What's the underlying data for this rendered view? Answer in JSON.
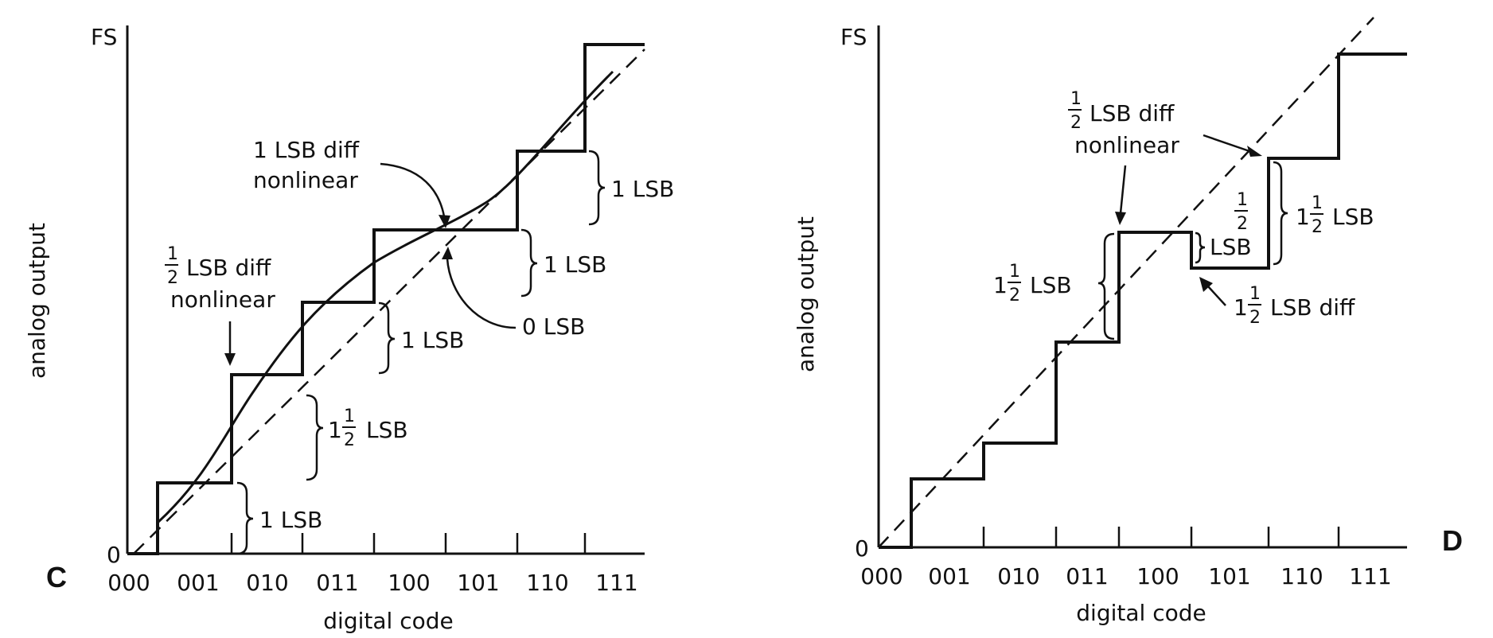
{
  "panels": [
    {
      "letter": "C",
      "axis_y_label": "analog output",
      "axis_x_label": "digital code",
      "y_top": "FS",
      "y_zero": "0",
      "codes": [
        "000",
        "001",
        "010",
        "011",
        "100",
        "101",
        "110",
        "111"
      ],
      "annotations": {
        "diff_one_top": "1 LSB diff",
        "diff_one_bottom": "nonlinear",
        "half_lsb_frac_num": "1",
        "half_lsb_frac_den": "2",
        "half_lsb_diff": "LSB diff",
        "half_lsb_bottom": "nonlinear",
        "zero_lsb": "0 LSB",
        "lsb_a": "1 LSB",
        "lsb_b": "1 LSB",
        "lsb_c": "1 LSB",
        "lsb_d": "1 LSB",
        "one_half_whole": "1",
        "one_half_num": "1",
        "one_half_den": "2",
        "one_half_unit": "LSB"
      }
    },
    {
      "letter": "D",
      "axis_y_label": "analog output",
      "axis_x_label": "digital code",
      "y_top": "FS",
      "y_zero": "0",
      "codes": [
        "000",
        "001",
        "010",
        "011",
        "100",
        "101",
        "110",
        "111"
      ],
      "annotations": {
        "half_num": "1",
        "half_den": "2",
        "half_diff": "LSB diff",
        "half_bottom": "nonlinear",
        "left_whole": "1",
        "left_num": "1",
        "left_den": "2",
        "left_unit": "LSB",
        "mid_num": "1",
        "mid_den": "2",
        "mid_unit": "LSB",
        "right_whole": "1",
        "right_num": "1",
        "right_den": "2",
        "right_unit": "LSB",
        "bottom_whole": "1",
        "bottom_num": "1",
        "bottom_den": "2",
        "bottom_unit": "LSB diff"
      }
    }
  ]
}
